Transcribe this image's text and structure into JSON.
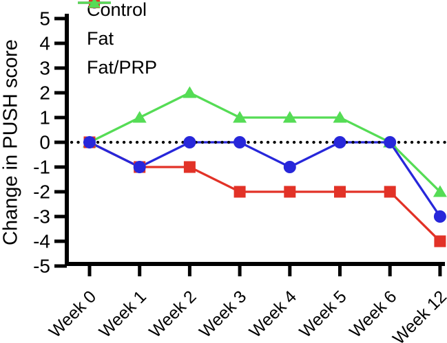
{
  "figure": {
    "background": "#ffffff",
    "axis_color": "#000000",
    "text_color": "#000000"
  },
  "chart_data": {
    "type": "line",
    "title": "",
    "xlabel": "",
    "ylabel": "Change in PUSH score",
    "categories": [
      "Week 0",
      "Week 1",
      "Week 2",
      "Week 3",
      "Week 4",
      "Week 5",
      "Week 6",
      "Week 12"
    ],
    "ylim": [
      -5,
      5
    ],
    "ytick_step": 1,
    "yticks": [
      5,
      4,
      3,
      2,
      1,
      0,
      -1,
      -2,
      -3,
      -4,
      -5
    ],
    "grid": false,
    "legend_position": "top-left",
    "zero_line": {
      "y": 0,
      "style": "dotted",
      "color": "#000000"
    },
    "series": [
      {
        "name": "Control",
        "marker": "circle",
        "color": "#2727da",
        "values": [
          0,
          -1,
          0,
          0,
          -1,
          0,
          0,
          -3
        ]
      },
      {
        "name": "Fat",
        "marker": "square",
        "color": "#e23227",
        "values": [
          0,
          -1,
          -1,
          -2,
          -2,
          -2,
          -2,
          -4
        ]
      },
      {
        "name": "Fat/PRP",
        "marker": "triangle",
        "color": "#55dc55",
        "values": [
          0,
          1,
          2,
          1,
          1,
          1,
          0,
          -2
        ]
      }
    ]
  }
}
